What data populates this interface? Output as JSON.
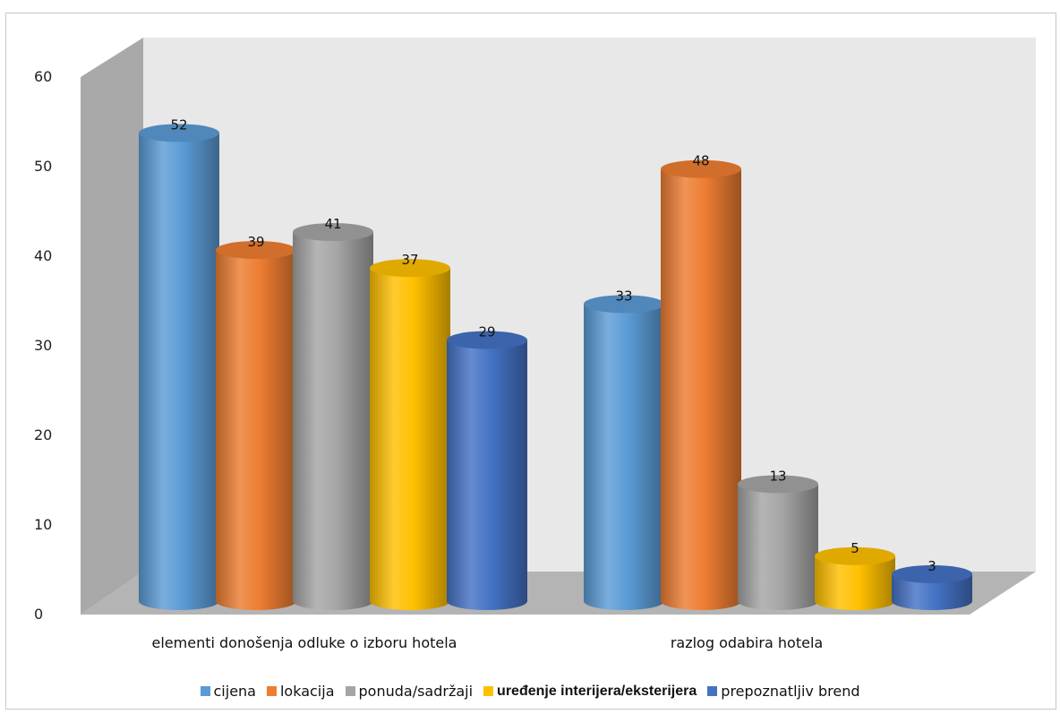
{
  "chart_data": {
    "type": "bar",
    "style": "3d-cylinder",
    "categories": [
      "elementi donošenja odluke o izboru hotela",
      "razlog odabira hotela"
    ],
    "series": [
      {
        "name": "cijena",
        "color": "#5b9bd5",
        "values": [
          52,
          33
        ]
      },
      {
        "name": "lokacija",
        "color": "#ed7d31",
        "values": [
          39,
          48
        ]
      },
      {
        "name": "ponuda/sadržaji",
        "color": "#a5a5a5",
        "values": [
          41,
          13
        ]
      },
      {
        "name": "uređenje interijera/eksterijera",
        "color": "#ffc000",
        "values": [
          37,
          5
        ]
      },
      {
        "name": "prepoznatljiv brend",
        "color": "#4472c4",
        "values": [
          29,
          3
        ]
      }
    ],
    "yticks": [
      0,
      10,
      20,
      30,
      40,
      50,
      60
    ],
    "ylim": [
      0,
      60
    ],
    "grid": false,
    "legend_position": "bottom",
    "wall_color": "#e8e8e8",
    "side_wall_color": "#a8a8a8",
    "floor_color": "#b4b4b4"
  }
}
